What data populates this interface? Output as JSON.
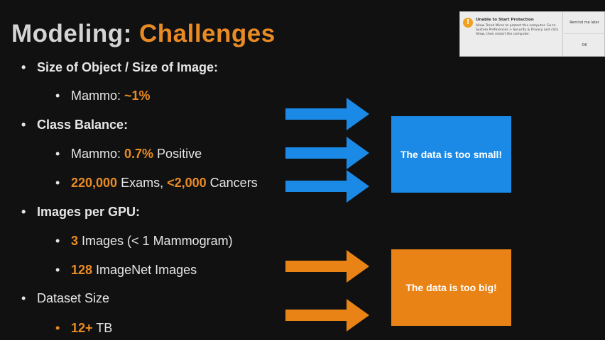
{
  "slide": {
    "title_main": "Modeling:",
    "title_accent": "Challenges",
    "bullets": [
      {
        "level": 1,
        "parts": [
          {
            "t": "Size of Object / Size of Image:",
            "hl": false
          }
        ]
      },
      {
        "level": 2,
        "parts": [
          {
            "t": "Mammo: ",
            "hl": false
          },
          {
            "t": "~1%",
            "hl": true
          }
        ]
      },
      {
        "level": 1,
        "parts": [
          {
            "t": "Class Balance:",
            "hl": false
          }
        ]
      },
      {
        "level": 2,
        "parts": [
          {
            "t": "Mammo: ",
            "hl": false
          },
          {
            "t": "0.7%",
            "hl": true
          },
          {
            "t": " Positive",
            "hl": false
          }
        ]
      },
      {
        "level": 2,
        "parts": [
          {
            "t": "220,000",
            "hl": true
          },
          {
            "t": " Exams, ",
            "hl": false
          },
          {
            "t": "<2,000",
            "hl": true
          },
          {
            "t": " Cancers",
            "hl": false
          }
        ]
      },
      {
        "level": 1,
        "parts": [
          {
            "t": "Images per GPU:",
            "hl": false
          }
        ]
      },
      {
        "level": 2,
        "parts": [
          {
            "t": "3",
            "hl": true
          },
          {
            "t": " Images (< 1 Mammogram)",
            "hl": false
          }
        ]
      },
      {
        "level": 2,
        "parts": [
          {
            "t": "128",
            "hl": true
          },
          {
            "t": " ImageNet Images",
            "hl": false
          }
        ]
      },
      {
        "level": 1,
        "plain": true,
        "parts": [
          {
            "t": "Dataset Size",
            "hl": false
          }
        ]
      },
      {
        "level": 2,
        "orange_bullet": true,
        "parts": [
          {
            "t": "12+",
            "hl": true
          },
          {
            "t": " TB",
            "hl": false
          }
        ]
      }
    ],
    "callout_small": "The data is too small!",
    "callout_big": "The data is too big!"
  },
  "colors": {
    "accent_orange": "#e98b25",
    "arrow_blue": "#1a8ae6",
    "arrow_orange": "#e98316",
    "background": "#111111"
  },
  "popup": {
    "icon": "warning-icon",
    "title": "Unable to Start Protection",
    "message": "Allow Trend Micro to protect this computer. Go to System Preferences > Security & Privacy and click Allow, then restart the computer.",
    "remind_label": "Remind me later",
    "ok_label": "OK"
  }
}
